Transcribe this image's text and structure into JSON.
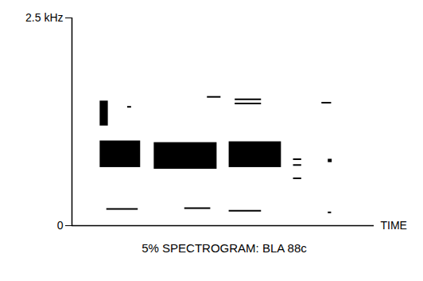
{
  "chart_data": {
    "type": "spectrogram",
    "title": "5% SPECTROGRAM: BLA 88c",
    "xlabel": "TIME",
    "xlim": [
      0,
      100
    ],
    "xticks": [],
    "ylim": [
      0,
      2.5
    ],
    "yticks": [
      0,
      {
        "value": 2.5,
        "label": "2.5 kHz"
      }
    ],
    "tick_labels": "y",
    "color": "#000000",
    "blobs": [
      {
        "x1": 9.3,
        "x2": 22.7,
        "y1": 0.7,
        "y2": 1.02
      },
      {
        "x1": 27.2,
        "x2": 48.0,
        "y1": 0.68,
        "y2": 1.0
      },
      {
        "x1": 52.0,
        "x2": 69.3,
        "y1": 0.7,
        "y2": 1.01
      },
      {
        "x1": 9.3,
        "x2": 12.0,
        "y1": 1.2,
        "y2": 1.5
      },
      {
        "x1": 84.8,
        "x2": 86.1,
        "y1": 0.76,
        "y2": 0.8
      }
    ],
    "lines": [
      {
        "x1": 11.5,
        "x2": 21.9,
        "y": 0.2
      },
      {
        "x1": 37.3,
        "x2": 45.9,
        "y": 0.21
      },
      {
        "x1": 52.0,
        "x2": 62.7,
        "y": 0.18
      },
      {
        "x1": 84.8,
        "x2": 85.9,
        "y": 0.16
      },
      {
        "x1": 44.8,
        "x2": 49.3,
        "y": 1.55
      },
      {
        "x1": 54.0,
        "x2": 62.7,
        "y": 1.47
      },
      {
        "x1": 54.0,
        "x2": 62.7,
        "y": 1.52
      },
      {
        "x1": 18.4,
        "x2": 19.7,
        "y": 1.43
      },
      {
        "x1": 82.7,
        "x2": 85.9,
        "y": 1.48
      },
      {
        "x1": 73.3,
        "x2": 76.0,
        "y": 0.8
      },
      {
        "x1": 73.3,
        "x2": 76.0,
        "y": 0.73
      },
      {
        "x1": 73.3,
        "x2": 76.0,
        "y": 0.57
      }
    ]
  }
}
